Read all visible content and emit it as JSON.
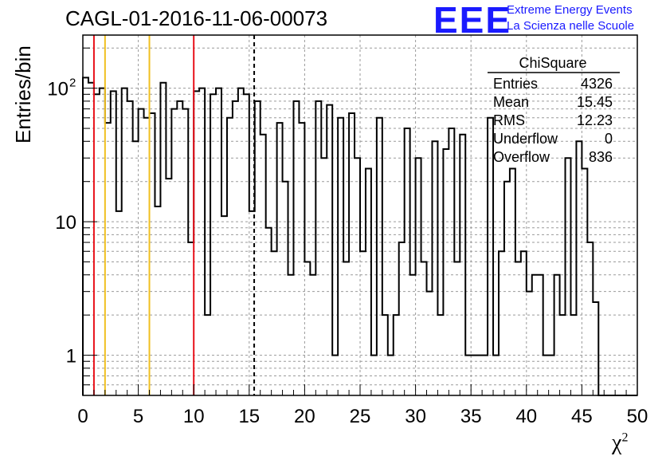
{
  "header": {
    "title": "CAGL-01-2016-11-06-00073",
    "logo_text": "EEE",
    "logo_line1": "Extreme Energy Events",
    "logo_line2": "La Scienza nelle Scuole"
  },
  "colors": {
    "histogram": "#000000",
    "red_line": "#e8101a",
    "yellow_line": "#f0c020",
    "grid": "#9a9a9a",
    "logo": "#1a1aff"
  },
  "stats_box": {
    "name": "ChiSquare",
    "rows": [
      {
        "label": "Entries",
        "value": "4326"
      },
      {
        "label": "Mean",
        "value": "15.45"
      },
      {
        "label": "RMS",
        "value": "12.23"
      },
      {
        "label": "Underflow",
        "value": "0"
      },
      {
        "label": "Overflow",
        "value": "836"
      }
    ]
  },
  "chart_data": {
    "type": "histogram",
    "ylabel": "Entries/bin",
    "xlabel": "χ",
    "xlabel_sup": "2",
    "xlim": [
      0,
      50
    ],
    "ylim": [
      0.5,
      250
    ],
    "yscale": "log",
    "grid": true,
    "x_ticks": [
      "0",
      "5",
      "10",
      "15",
      "20",
      "25",
      "30",
      "35",
      "40",
      "45",
      "50"
    ],
    "y_ticks": [
      {
        "value": 1,
        "label": "1"
      },
      {
        "value": 10,
        "label": "10"
      },
      {
        "value": 100,
        "label": "10",
        "sup": "2"
      }
    ],
    "bin_width": 0.5,
    "values": [
      120,
      110,
      90,
      100,
      55,
      95,
      12,
      100,
      80,
      40,
      70,
      60,
      65,
      13,
      110,
      21,
      70,
      80,
      70,
      7,
      95,
      100,
      2,
      90,
      100,
      11,
      60,
      80,
      100,
      90,
      12,
      80,
      45,
      9,
      6,
      55,
      20,
      4,
      80,
      55,
      5,
      4,
      80,
      30,
      75,
      1,
      60,
      5,
      65,
      30,
      6,
      25,
      1,
      60,
      2,
      1,
      2,
      7,
      50,
      4,
      30,
      5,
      3,
      40,
      2,
      35,
      50,
      5,
      45,
      1,
      1,
      1,
      1,
      60,
      1,
      6,
      20,
      25,
      5,
      6,
      3,
      4,
      4,
      1,
      1,
      4,
      2,
      30,
      2,
      40,
      25,
      7,
      2.5,
      0.5,
      0.5,
      0.5,
      0.5,
      0.5,
      0.5,
      0.5
    ],
    "markers": [
      {
        "x": 1,
        "color": "red"
      },
      {
        "x": 2,
        "color": "yellow"
      },
      {
        "x": 6,
        "color": "yellow"
      },
      {
        "x": 10,
        "color": "red"
      },
      {
        "x": 15.45,
        "color": "black",
        "style": "dashed"
      }
    ]
  }
}
